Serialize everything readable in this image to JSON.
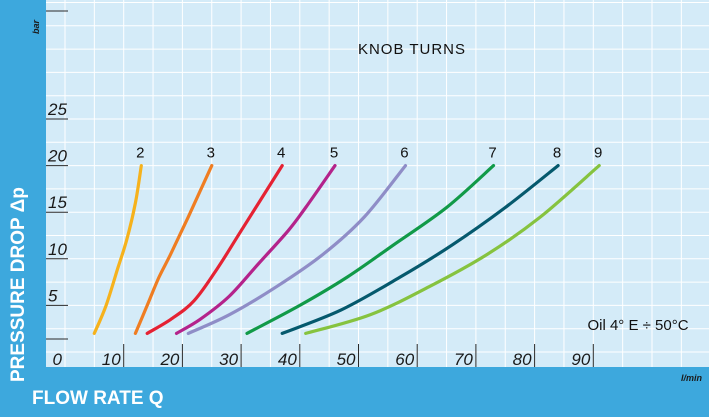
{
  "chart_data": {
    "type": "line",
    "title": "KNOB TURNS",
    "xlabel": "FLOW RATE Q",
    "ylabel": "PRESSURE DROP Δp",
    "x_unit": "l/min",
    "y_unit": "bar",
    "xlim": [
      0,
      100
    ],
    "ylim": [
      0,
      30
    ],
    "x_ticks": [
      "0",
      "10",
      "20",
      "30",
      "40",
      "50",
      "60",
      "70",
      "80",
      "90"
    ],
    "y_ticks": [
      "5",
      "10",
      "15",
      "20",
      "25"
    ],
    "grid": true,
    "annotation": "Oil 4° E ÷ 50°C",
    "series": [
      {
        "name": "2",
        "color": "#f6b21c",
        "x": [
          5,
          7,
          9,
          10.5,
          12,
          13
        ],
        "y": [
          2,
          5,
          9,
          12,
          16,
          20
        ]
      },
      {
        "name": "3",
        "color": "#ef7d22",
        "x": [
          12,
          14,
          16,
          18,
          21,
          25
        ],
        "y": [
          2,
          5,
          8,
          10.5,
          14.5,
          20
        ]
      },
      {
        "name": "4",
        "color": "#e52233",
        "x": [
          14,
          18,
          22,
          26,
          30,
          37
        ],
        "y": [
          2,
          3.5,
          5.5,
          9,
          13,
          20
        ]
      },
      {
        "name": "5",
        "color": "#b4238b",
        "x": [
          19,
          23,
          28,
          33,
          38,
          41,
          46
        ],
        "y": [
          2,
          3.5,
          6,
          9.5,
          13,
          15.5,
          20
        ]
      },
      {
        "name": "6",
        "color": "#8f8dc7",
        "x": [
          21,
          28,
          36,
          44,
          51,
          58
        ],
        "y": [
          2,
          4,
          7,
          10.5,
          14.5,
          20
        ]
      },
      {
        "name": "7",
        "color": "#119a48",
        "x": [
          31,
          40,
          48,
          56,
          65,
          73
        ],
        "y": [
          2,
          5,
          8,
          11.5,
          15.5,
          20
        ]
      },
      {
        "name": "8",
        "color": "#05596d",
        "x": [
          37,
          47,
          57,
          66,
          75,
          84
        ],
        "y": [
          2,
          4.5,
          8,
          11.5,
          15.5,
          20
        ]
      },
      {
        "name": "9",
        "color": "#86c33f",
        "x": [
          41,
          52,
          62,
          72,
          81,
          91
        ],
        "y": [
          2,
          4,
          7,
          10.5,
          14.5,
          20
        ]
      }
    ]
  }
}
